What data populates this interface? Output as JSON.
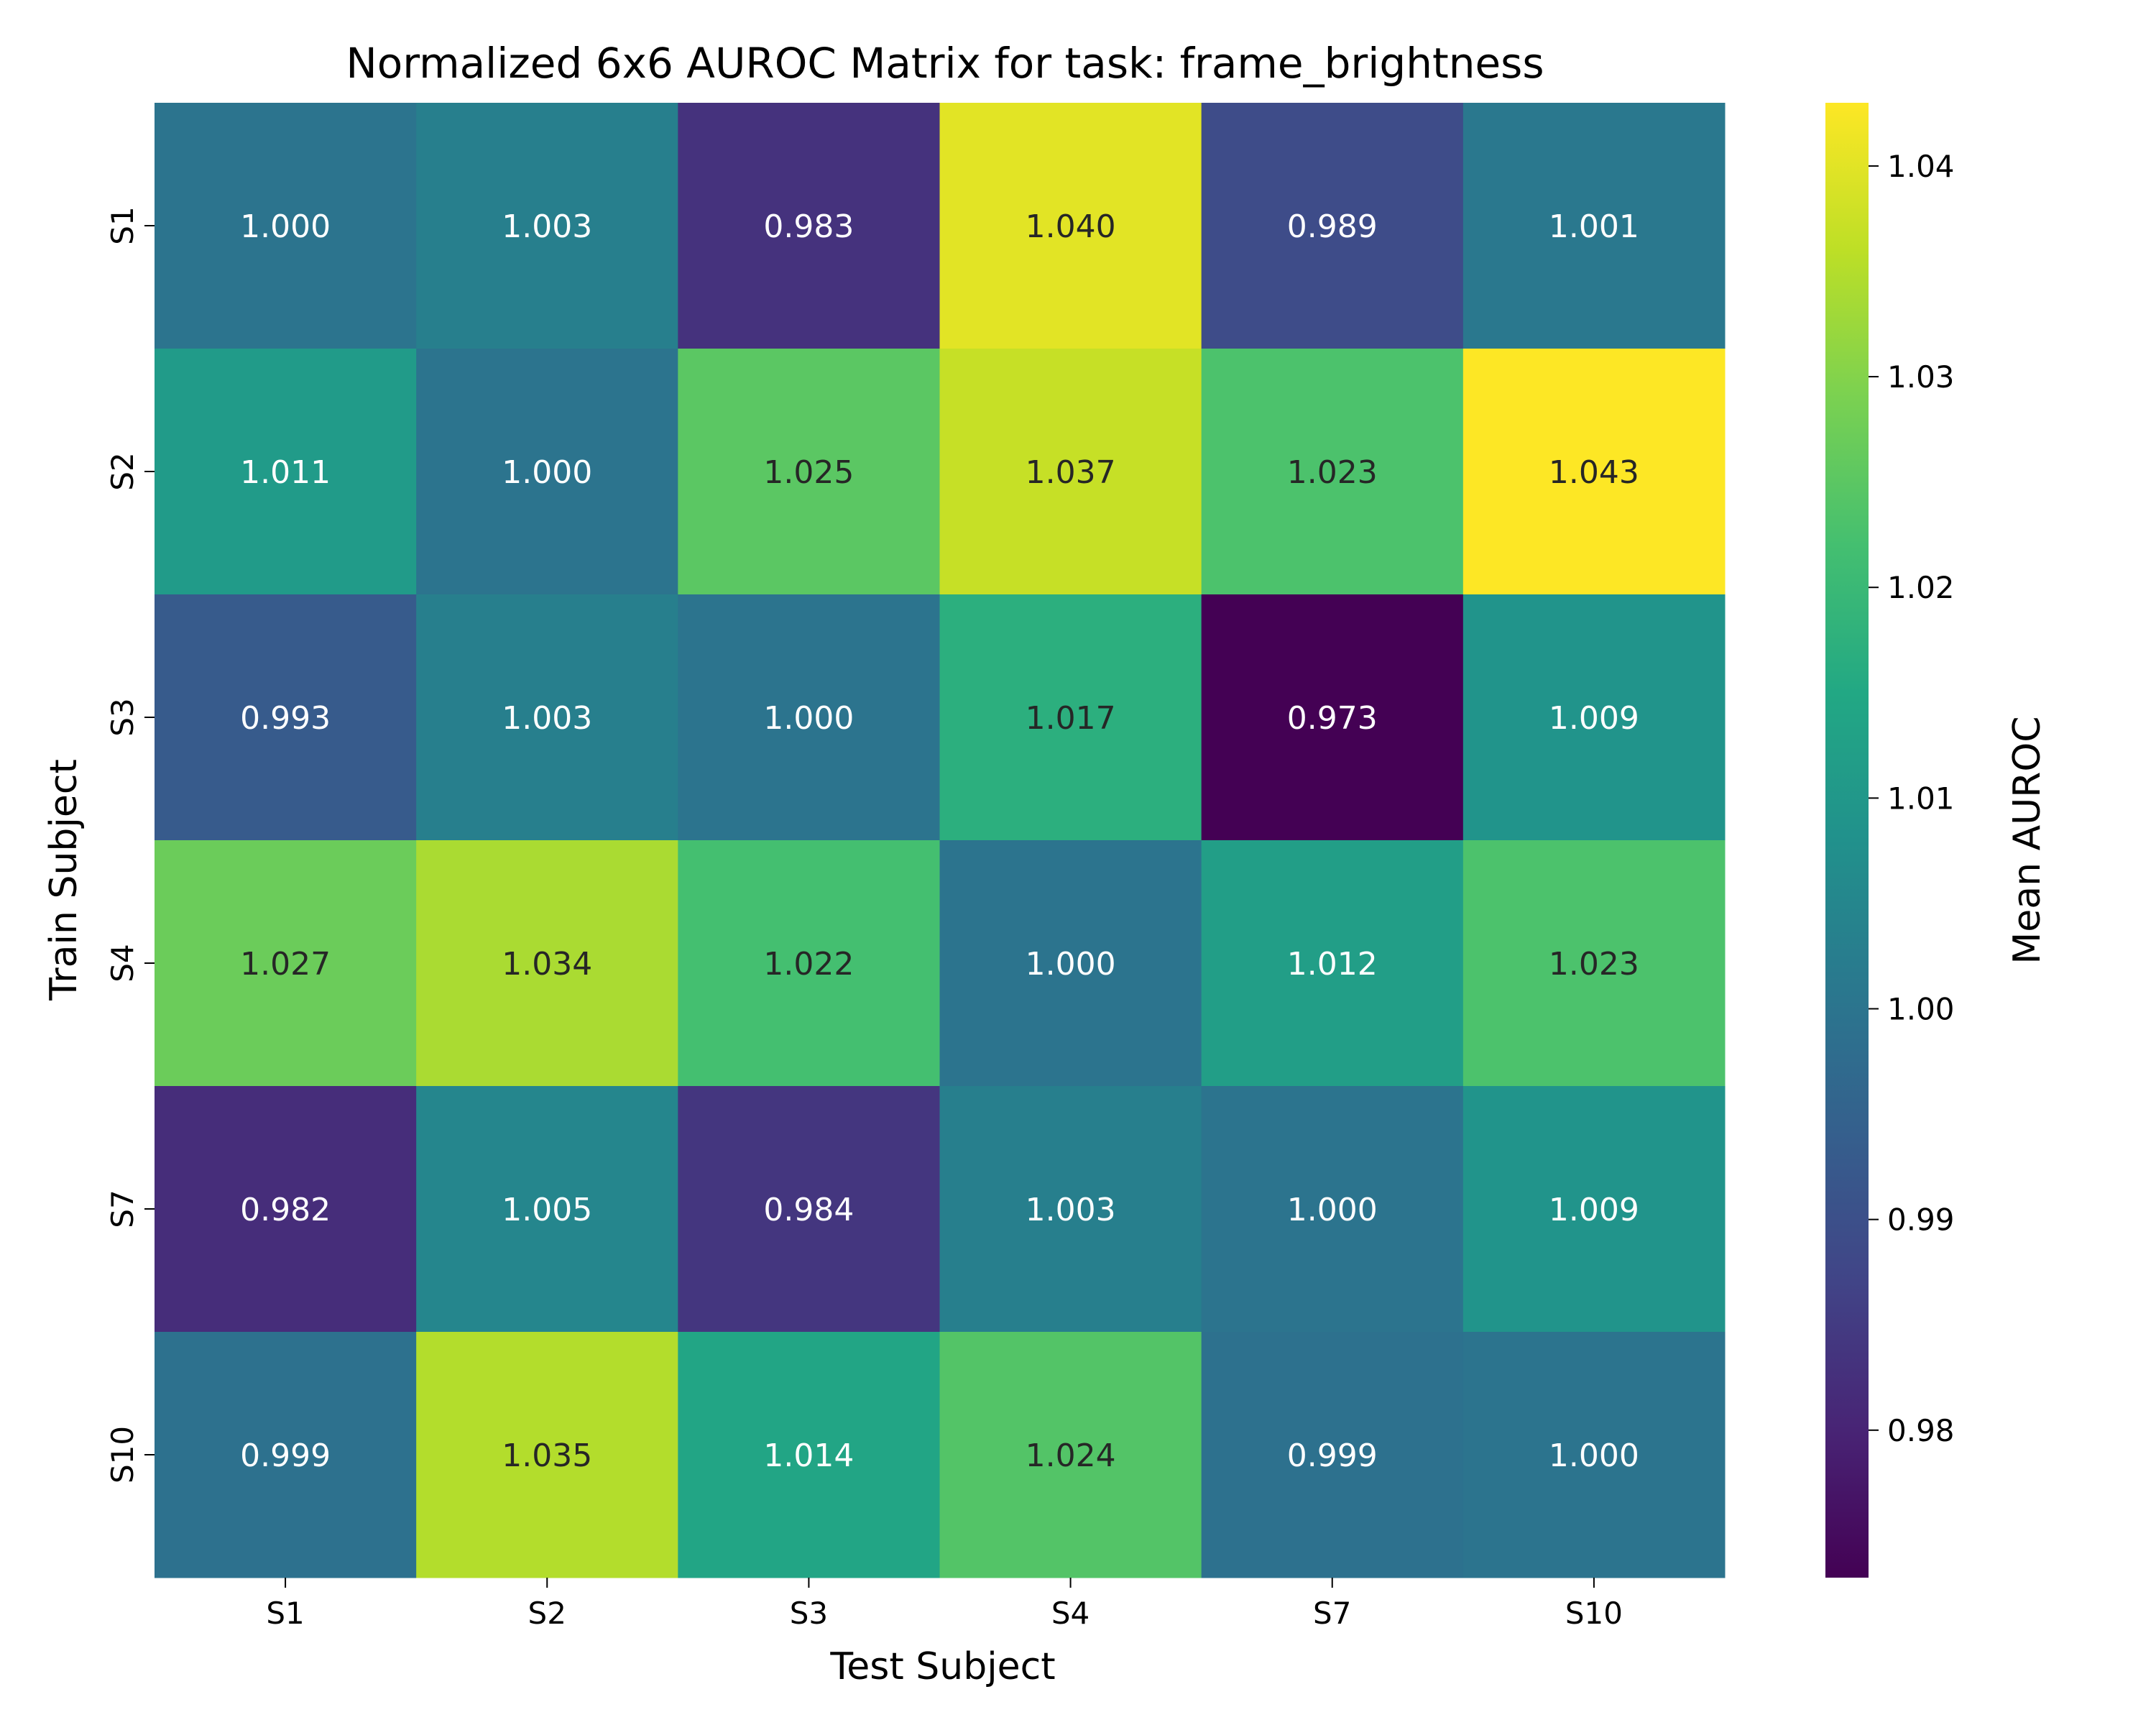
{
  "chart_data": {
    "type": "heatmap",
    "title": "Normalized 6x6 AUROC Matrix for task: frame_brightness",
    "xlabel": "Test Subject",
    "ylabel": "Train Subject",
    "x_categories": [
      "S1",
      "S2",
      "S3",
      "S4",
      "S7",
      "S10"
    ],
    "y_categories": [
      "S1",
      "S2",
      "S3",
      "S4",
      "S7",
      "S10"
    ],
    "values": [
      [
        1.0,
        1.003,
        0.983,
        1.04,
        0.989,
        1.001
      ],
      [
        1.011,
        1.0,
        1.025,
        1.037,
        1.023,
        1.043
      ],
      [
        0.993,
        1.003,
        1.0,
        1.017,
        0.973,
        1.009
      ],
      [
        1.027,
        1.034,
        1.022,
        1.0,
        1.012,
        1.023
      ],
      [
        0.982,
        1.005,
        0.984,
        1.003,
        1.0,
        1.009
      ],
      [
        0.999,
        1.035,
        1.014,
        1.024,
        0.999,
        1.0
      ]
    ],
    "cell_labels": [
      [
        "1.000",
        "1.003",
        "0.983",
        "1.040",
        "0.989",
        "1.001"
      ],
      [
        "1.011",
        "1.000",
        "1.025",
        "1.037",
        "1.023",
        "1.043"
      ],
      [
        "0.993",
        "1.003",
        "1.000",
        "1.017",
        "0.973",
        "1.009"
      ],
      [
        "1.027",
        "1.034",
        "1.022",
        "1.000",
        "1.012",
        "1.023"
      ],
      [
        "0.982",
        "1.005",
        "0.984",
        "1.003",
        "1.000",
        "1.009"
      ],
      [
        "0.999",
        "1.035",
        "1.014",
        "1.024",
        "0.999",
        "1.000"
      ]
    ],
    "colormap": "viridis",
    "vmin": 0.973,
    "vmax": 1.043,
    "colorbar": {
      "label": "Mean AUROC",
      "ticks": [
        0.98,
        0.99,
        1.0,
        1.01,
        1.02,
        1.03,
        1.04
      ],
      "tick_labels": [
        "0.98",
        "0.99",
        "1.00",
        "1.01",
        "1.02",
        "1.03",
        "1.04"
      ]
    }
  }
}
